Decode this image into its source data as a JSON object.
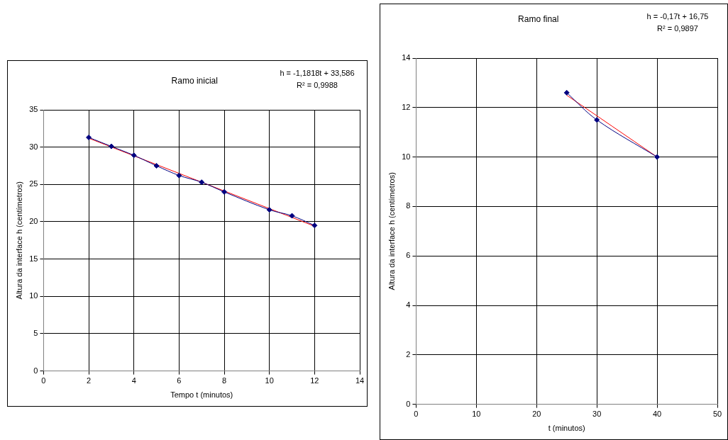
{
  "chart_data": [
    {
      "type": "line",
      "title": "Ramo inicial",
      "xlabel": "Tempo t (minutos)",
      "ylabel": "Altura da interface h (centímetros)",
      "x": [
        2,
        3,
        4,
        5,
        6,
        7,
        8,
        10,
        11,
        12
      ],
      "series": [
        {
          "color": "#000080",
          "values": [
            31.3,
            30.1,
            28.9,
            27.5,
            26.2,
            25.3,
            24.0,
            21.6,
            20.8,
            19.5
          ],
          "marker": "diamond"
        },
        {
          "type": "line",
          "x": [
            2,
            12
          ],
          "color": "#ff0000",
          "values": [
            31.2,
            19.4
          ],
          "marker": "none"
        }
      ],
      "xlim": [
        0,
        14
      ],
      "xticks": [
        0,
        2,
        4,
        6,
        8,
        10,
        12,
        14
      ],
      "ylim": [
        0,
        35
      ],
      "yticks": [
        0,
        5,
        10,
        15,
        20,
        25,
        30,
        35
      ],
      "grid": true,
      "legend": false,
      "annotations": [
        "h = -1,1818t + 33,586",
        "R² = 0,9988"
      ]
    },
    {
      "type": "line",
      "title": "Ramo final",
      "xlabel": "t (minutos)",
      "ylabel": "Altura da interface h (centímetros)",
      "x": [
        25,
        30,
        40
      ],
      "series": [
        {
          "color": "#000080",
          "values": [
            12.6,
            11.5,
            10.0
          ],
          "marker": "diamond"
        },
        {
          "type": "line",
          "x": [
            25,
            40
          ],
          "color": "#ff0000",
          "values": [
            12.5,
            10.0
          ],
          "marker": "none"
        }
      ],
      "xlim": [
        0,
        50
      ],
      "xticks": [
        0,
        10,
        20,
        30,
        40,
        50
      ],
      "ylim": [
        0,
        14
      ],
      "yticks": [
        0,
        2,
        4,
        6,
        8,
        10,
        12,
        14
      ],
      "grid": true,
      "legend": false,
      "annotations": [
        "h = -0,17t + 16,75",
        "R² = 0,9897"
      ]
    }
  ]
}
